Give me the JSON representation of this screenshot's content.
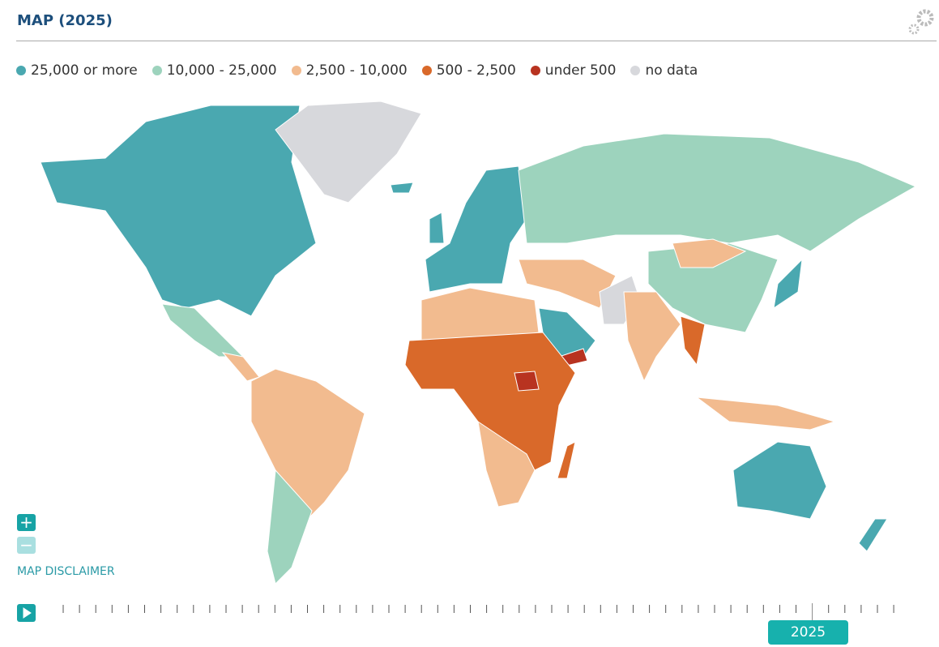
{
  "header": {
    "title": "MAP (2025)"
  },
  "legend": {
    "items": [
      {
        "label": "25,000 or more",
        "color": "#4aa8b0"
      },
      {
        "label": "10,000 - 25,000",
        "color": "#9dd3bd"
      },
      {
        "label": "2,500 - 10,000",
        "color": "#f2bb8f"
      },
      {
        "label": "500 - 2,500",
        "color": "#d9692a"
      },
      {
        "label": "under 500",
        "color": "#b83320"
      },
      {
        "label": "no data",
        "color": "#d7d8dc"
      }
    ]
  },
  "controls": {
    "disclaimer": "MAP DISCLAIMER"
  },
  "timeline": {
    "current": "2025"
  }
}
